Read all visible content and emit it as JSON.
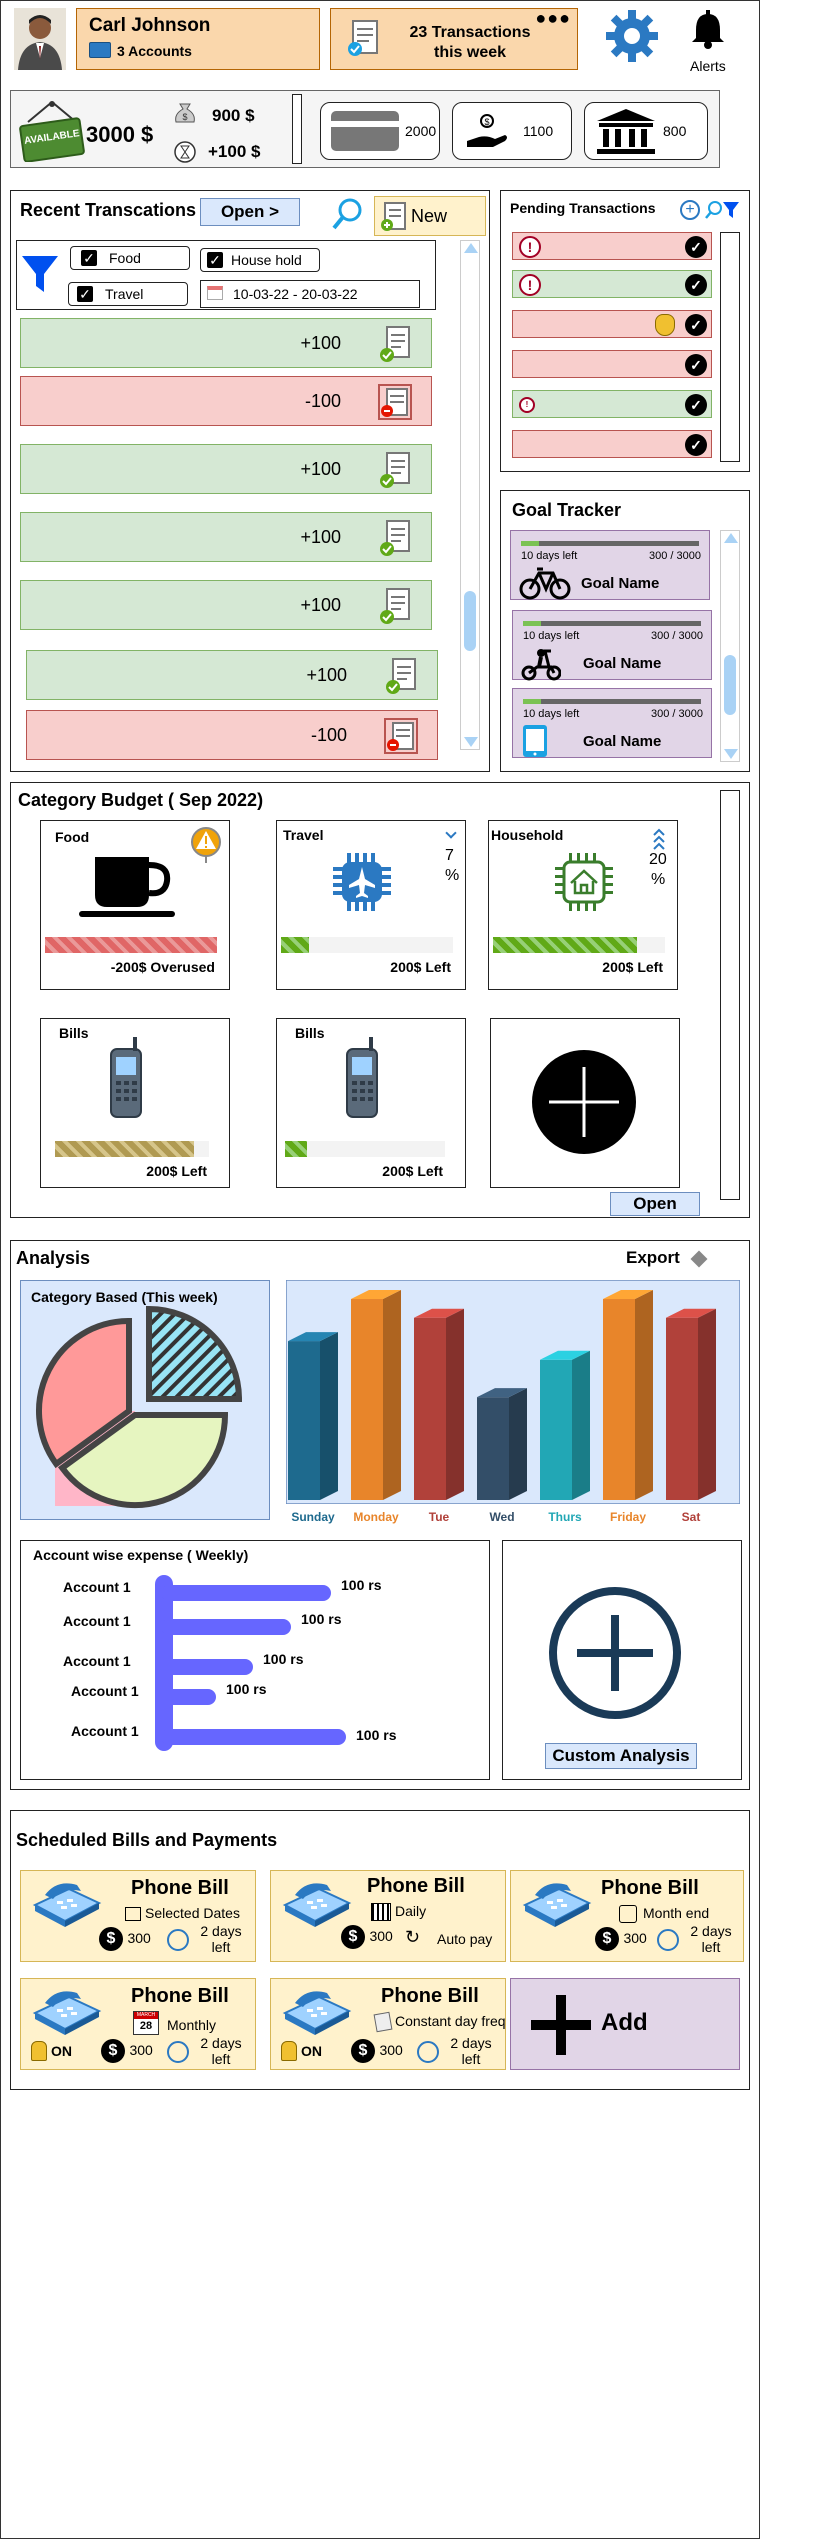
{
  "header": {
    "user_name": "Carl Johnson",
    "accounts": "3 Accounts",
    "transactions_week": "23 Transactions this week",
    "alerts_label": "Alerts"
  },
  "balance": {
    "available_tag": "AVAILABLE",
    "amount": "3000 $",
    "bag_amount": "900 $",
    "pending_amount": "+100 $",
    "card_value": "2000",
    "cash_value": "1100",
    "bank_value": "800"
  },
  "recent": {
    "title": "Recent Transcations",
    "open_label": "Open >",
    "new_label": "New",
    "filters": {
      "food": "Food",
      "household": "House hold",
      "travel": "Travel",
      "date_range": "10-03-22 - 20-03-22"
    },
    "rows": [
      {
        "amount": "+100",
        "kind": "pos"
      },
      {
        "amount": "-100",
        "kind": "neg"
      },
      {
        "amount": "+100",
        "kind": "pos"
      },
      {
        "amount": "+100",
        "kind": "pos"
      },
      {
        "amount": "+100",
        "kind": "pos"
      },
      {
        "amount": "+100",
        "kind": "pos"
      },
      {
        "amount": "-100",
        "kind": "neg"
      }
    ]
  },
  "pending": {
    "title": "Pending Transactions",
    "rows": [
      "neg",
      "pos",
      "neg",
      "neg",
      "pos",
      "neg"
    ]
  },
  "goals": {
    "title": "Goal Tracker",
    "items": [
      {
        "days": "10 days left",
        "progress": "300 / 3000",
        "name": "Goal Name",
        "icon": "bicycle-icon",
        "fraction": 0.1
      },
      {
        "days": "10 days left",
        "progress": "300 / 3000",
        "name": "Goal Name",
        "icon": "scooter-icon",
        "fraction": 0.1
      },
      {
        "days": "10 days left",
        "progress": "300 / 3000",
        "name": "Goal Name",
        "icon": "tablet-icon",
        "fraction": 0.1
      }
    ]
  },
  "budget": {
    "title": "Category Budget ( Sep 2022)",
    "open_label": "Open",
    "cards": [
      {
        "name": "Food",
        "status": "-200$ Overused",
        "fill": 1.0,
        "icon": "coffee-cup-icon"
      },
      {
        "name": "Travel",
        "status": "200$ Left",
        "fill": 0.16,
        "trend": "7",
        "trend_unit": "%",
        "icon": "airplane-icon"
      },
      {
        "name": "Household",
        "status": "200$ Left",
        "fill": 0.84,
        "trend": "20",
        "trend_unit": "%",
        "icon": "house-icon"
      },
      {
        "name": "Bills",
        "status": "200$ Left",
        "fill": 0.9,
        "icon": "mobile-phone-icon"
      },
      {
        "name": "Bills",
        "status": "200$ Left",
        "fill": 0.1,
        "icon": "mobile-phone-icon"
      }
    ]
  },
  "analysis": {
    "title": "Analysis",
    "export_label": "Export",
    "category_title": "Category Based (This week)",
    "account_title": "Account wise expense ( Weekly)",
    "custom_label": "Custom Analysis"
  },
  "chart_data": [
    {
      "type": "pie",
      "title": "Category Based (This week)",
      "values": [
        35,
        25,
        40
      ]
    },
    {
      "type": "bar",
      "categories": [
        "Sunday",
        "Monday",
        "Tue",
        "Wed",
        "Thurs",
        "Friday",
        "Sat"
      ],
      "values": [
        170,
        215,
        195,
        110,
        150,
        215,
        195
      ],
      "colors": [
        "#1e6a8e",
        "#e8852a",
        "#b1413a",
        "#334e68",
        "#22a7b5",
        "#e8852a",
        "#b1413a"
      ]
    },
    {
      "type": "bar",
      "orientation": "horizontal",
      "title": "Account wise expense ( Weekly)",
      "categories": [
        "Account 1",
        "Account 1",
        "Account 1",
        "Account 1",
        "Account 1"
      ],
      "values": [
        100,
        100,
        100,
        100,
        100
      ],
      "value_labels": [
        "100 rs",
        "100 rs",
        "100 rs",
        "100 rs",
        "100 rs"
      ]
    }
  ],
  "bills": {
    "title": "Scheduled Bills and Payments",
    "add_label": "Add",
    "cards": [
      {
        "name": "Phone Bill",
        "freq": "Selected Dates",
        "amount": "300",
        "due": "2 days left"
      },
      {
        "name": "Phone Bill",
        "freq": "Daily",
        "amount": "300",
        "due": "Auto pay"
      },
      {
        "name": "Phone Bill",
        "freq": "Month end",
        "amount": "300",
        "due": "2 days left"
      },
      {
        "name": "Phone Bill",
        "freq": "Monthly",
        "amount": "300",
        "due": "2 days left",
        "state": "ON",
        "cal_label": "MARCH",
        "cal_day": "28"
      },
      {
        "name": "Phone Bill",
        "freq": "Constant day freq",
        "amount": "300",
        "due": "2 days left",
        "state": "ON"
      }
    ]
  }
}
